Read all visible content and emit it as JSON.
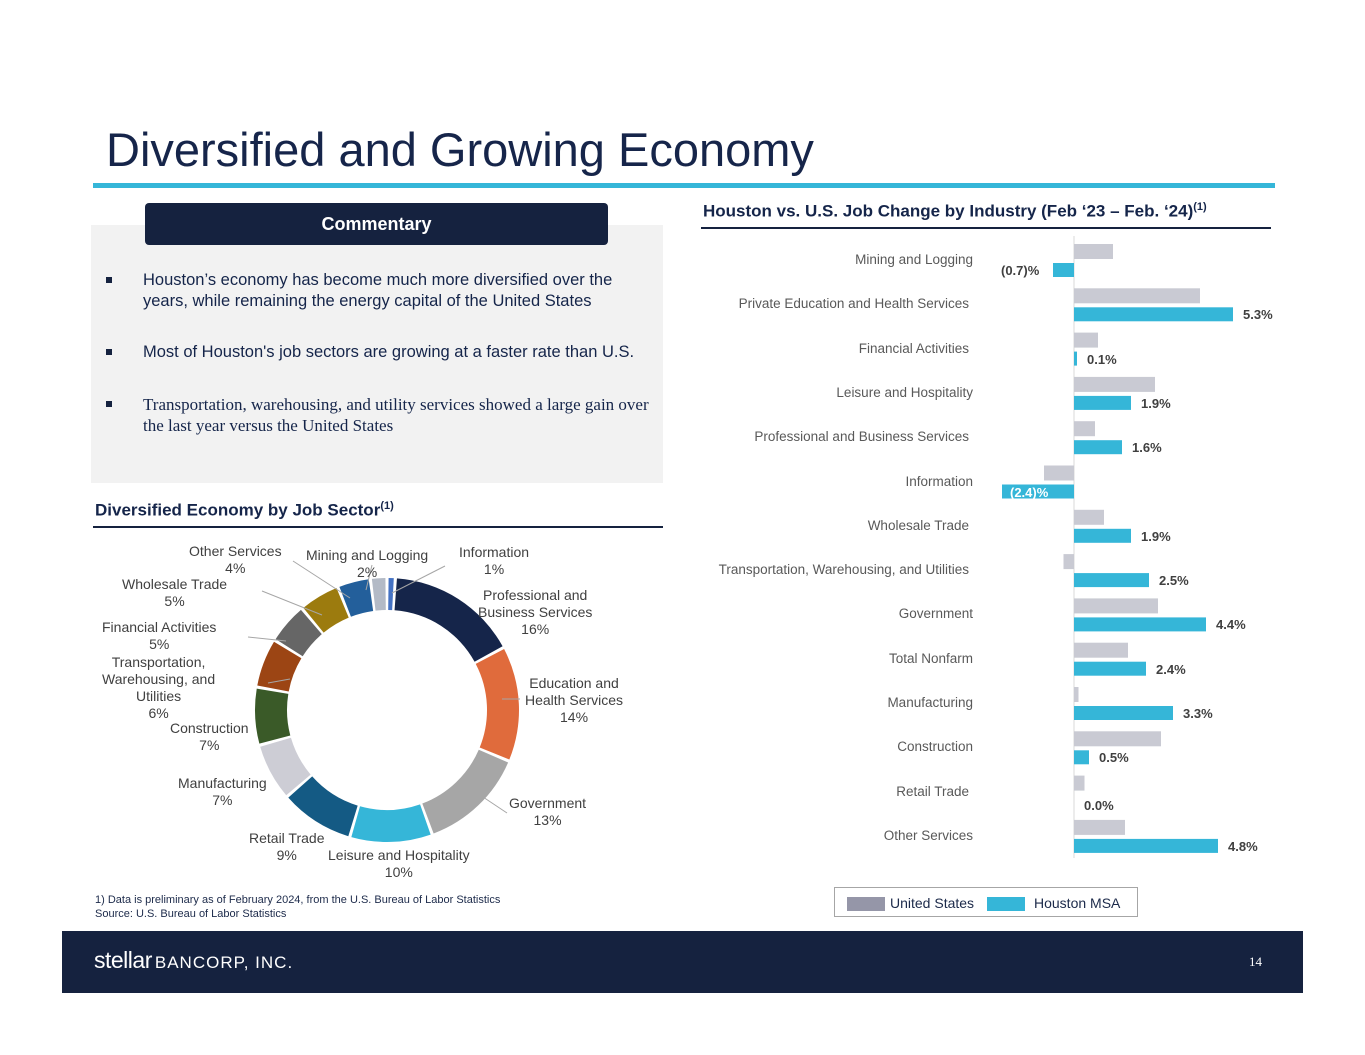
{
  "title": "Diversified and Growing Economy",
  "commentary": {
    "header": "Commentary",
    "bullets": [
      "Houston’s economy has become much more diversified over the years, while remaining the energy capital of the United States",
      "Most of Houston's job sectors are growing at a faster rate than U.S.",
      "Transportation, warehousing, and utility services showed a large gain over the last year versus the United States"
    ]
  },
  "pie_section": {
    "title": "Diversified Economy by Job Sector",
    "sup": "(1)"
  },
  "bar_section": {
    "title": "Houston vs. U.S. Job Change by Industry (Feb ‘23 – Feb. ‘24)",
    "sup": "(1)"
  },
  "chart_data": [
    {
      "type": "pie",
      "title": "Diversified Economy by Job Sector(1)",
      "donut": true,
      "slices": [
        {
          "name": "Information",
          "value": 1,
          "label": "1%",
          "color": "#4472c4"
        },
        {
          "name": "Professional and Business Services",
          "value": 16,
          "label": "16%",
          "color": "#15254a"
        },
        {
          "name": "Education and Health Services",
          "value": 14,
          "label": "14%",
          "color": "#e06b3c"
        },
        {
          "name": "Government",
          "value": 13,
          "label": "13%",
          "color": "#a6a6a6"
        },
        {
          "name": "Leisure and Hospitality",
          "value": 10,
          "label": "10%",
          "color": "#35b6d8"
        },
        {
          "name": "Retail Trade",
          "value": 9,
          "label": "9%",
          "color": "#145a84"
        },
        {
          "name": "Manufacturing",
          "value": 7,
          "label": "7%",
          "color": "#cdcdd5"
        },
        {
          "name": "Construction",
          "value": 7,
          "label": "7%",
          "color": "#3a5a28"
        },
        {
          "name": "Transportation, Warehousing, and Utilities",
          "value": 6,
          "label": "6%",
          "color": "#9c4514"
        },
        {
          "name": "Financial Activities",
          "value": 5,
          "label": "5%",
          "color": "#666666"
        },
        {
          "name": "Wholesale Trade",
          "value": 5,
          "label": "5%",
          "color": "#9c7b0e"
        },
        {
          "name": "Other Services",
          "value": 4,
          "label": "4%",
          "color": "#235f9b"
        },
        {
          "name": "Mining and Logging",
          "value": 2,
          "label": "2%",
          "color": "#b3bac6"
        }
      ]
    },
    {
      "type": "bar",
      "orientation": "horizontal",
      "title": "Houston vs. U.S. Job Change by Industry (Feb ‘23 – Feb. ‘24)(1)",
      "xlim": [
        -2.4,
        5.3
      ],
      "categories": [
        "Mining and Logging",
        "Private Education and Health Services",
        "Financial Activities",
        "Leisure and Hospitality",
        "Professional and Business Services",
        "Information",
        "Wholesale Trade",
        "Transportation, Warehousing, and Utilities",
        "Government",
        "Total Nonfarm",
        "Manufacturing",
        "Construction",
        "Retail Trade",
        "Other Services"
      ],
      "series": [
        {
          "name": "United States",
          "color": "#c9cad3",
          "values": [
            1.3,
            4.2,
            0.8,
            2.7,
            0.7,
            -1.0,
            1.0,
            -0.35,
            2.8,
            1.8,
            0.15,
            2.9,
            0.35,
            1.7
          ]
        },
        {
          "name": "Houston MSA",
          "color": "#35b6d8",
          "values": [
            -0.7,
            5.3,
            0.1,
            1.9,
            1.6,
            -2.4,
            1.9,
            2.5,
            4.4,
            2.4,
            3.3,
            0.5,
            0.0,
            4.8
          ],
          "labels": [
            "(0.7)%",
            "5.3%",
            "0.1%",
            "1.9%",
            "1.6%",
            "(2.4)%",
            "1.9%",
            "2.5%",
            "4.4%",
            "2.4%",
            "3.3%",
            "0.5%",
            "0.0%",
            "4.8%"
          ]
        }
      ]
    }
  ],
  "pie_labels": {
    "info_name": "Information",
    "info_val": "1%",
    "pbs_name_1": "Professional and",
    "pbs_name_2": "Business Services",
    "pbs_val": "16%",
    "ehs_name_1": "Education and",
    "ehs_name_2": "Health Services",
    "ehs_val": "14%",
    "gov_name": "Government",
    "gov_val": "13%",
    "leis_name": "Leisure and Hospitality",
    "leis_val": "10%",
    "ret_name": "Retail Trade",
    "ret_val": "9%",
    "man_name": "Manufacturing",
    "man_val": "7%",
    "con_name": "Construction",
    "con_val": "7%",
    "twu_name_1": "Transportation,",
    "twu_name_2": "Warehousing, and",
    "twu_name_3": "Utilities",
    "twu_val": "6%",
    "fin_name": "Financial Activities",
    "fin_val": "5%",
    "whl_name": "Wholesale Trade",
    "whl_val": "5%",
    "oth_name": "Other Services",
    "oth_val": "4%",
    "min_name": "Mining and Logging",
    "min_val": "2%"
  },
  "legend": {
    "us": "United States",
    "houston": "Houston MSA",
    "us_color": "#9596a8",
    "houston_color": "#35b6d8"
  },
  "footnote": {
    "line1": "1) Data is preliminary as of February 2024, from the U.S. Bureau of Labor Statistics",
    "line2": "Source: U.S. Bureau of Labor Statistics"
  },
  "footer": {
    "logo_word": "stellar",
    "logo_rest": "BANCORP, INC.",
    "page": "14"
  }
}
